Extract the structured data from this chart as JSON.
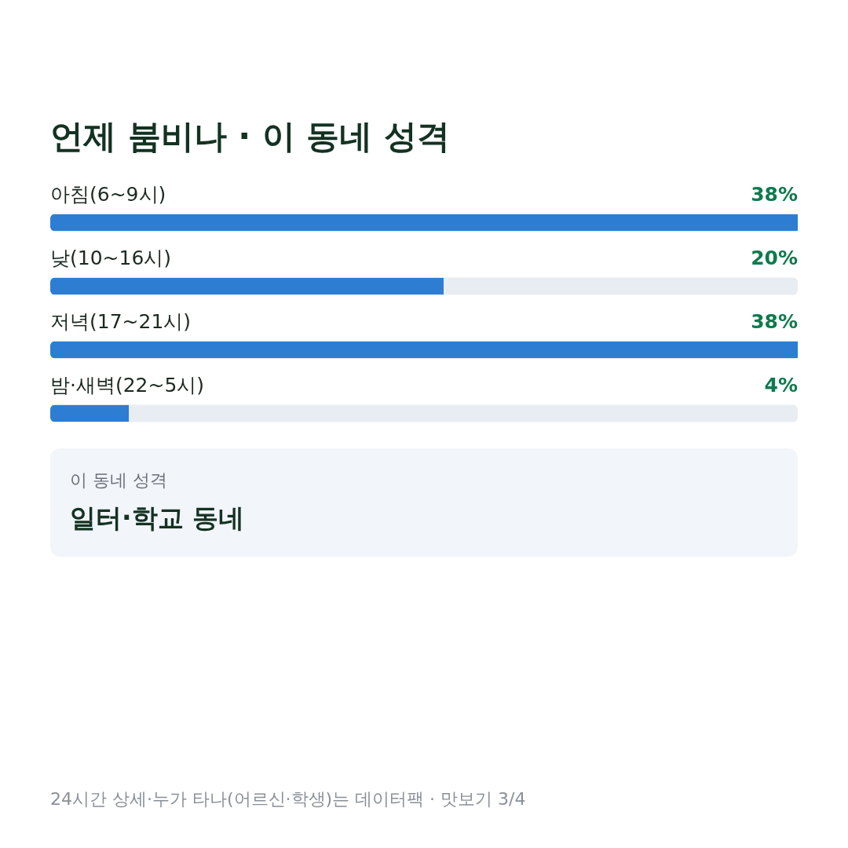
{
  "chart_data": [
    {
      "type": "bar",
      "orientation": "horizontal",
      "title": "언제 붐비나 · 이 동네 성격",
      "categories": [
        "아침(6~9시)",
        "낮(10~16시)",
        "저녁(17~21시)",
        "밤·새벽(22~5시)"
      ],
      "values": [
        38,
        20,
        38,
        4
      ],
      "value_labels": [
        "38%",
        "20%",
        "38%",
        "4%"
      ],
      "color": "#2d7dd2"
    },
    {
      "type": "other",
      "annotations": [
        "이 동네 성격",
        "일터·학교 동네",
        "24시간 상세·누가 타나(어르신·학생)는 데이터팩 · 맛보기 3/4"
      ]
    }
  ]
}
